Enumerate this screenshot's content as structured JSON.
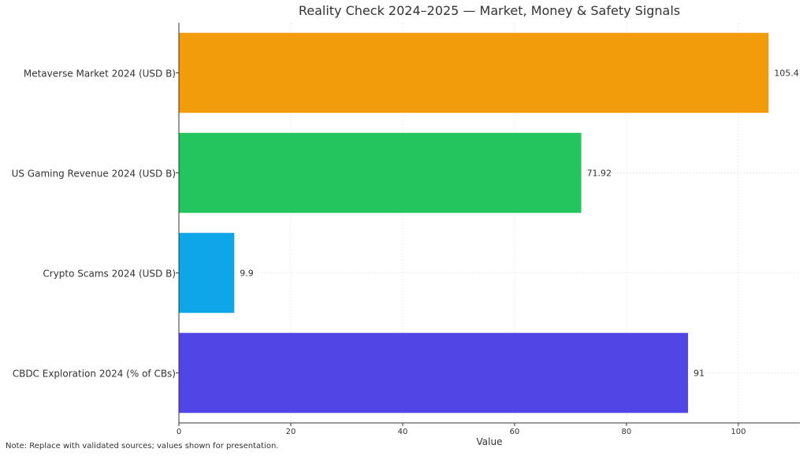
{
  "chart_data": {
    "type": "bar",
    "orientation": "horizontal",
    "title": "Reality Check 2024–2025 — Market, Money & Safety Signals",
    "xlabel": "Value",
    "ylabel": "",
    "xlim": [
      0,
      111
    ],
    "xticks": [
      0,
      20,
      40,
      60,
      80,
      100
    ],
    "grid": true,
    "categories": [
      "Metaverse Market 2024 (USD B)",
      "US Gaming Revenue 2024 (USD B)",
      "Crypto Scams 2024 (USD B)",
      "CBDC Exploration 2024 (% of CBs)"
    ],
    "values": [
      105.4,
      71.92,
      9.9,
      91
    ],
    "value_labels": [
      "105.4",
      "71.92",
      "9.9",
      "91"
    ],
    "colors": [
      "#f39c0b",
      "#22c55e",
      "#0ea5e9",
      "#4f46e5"
    ]
  },
  "note": "Note: Replace with validated sources; values shown for presentation."
}
